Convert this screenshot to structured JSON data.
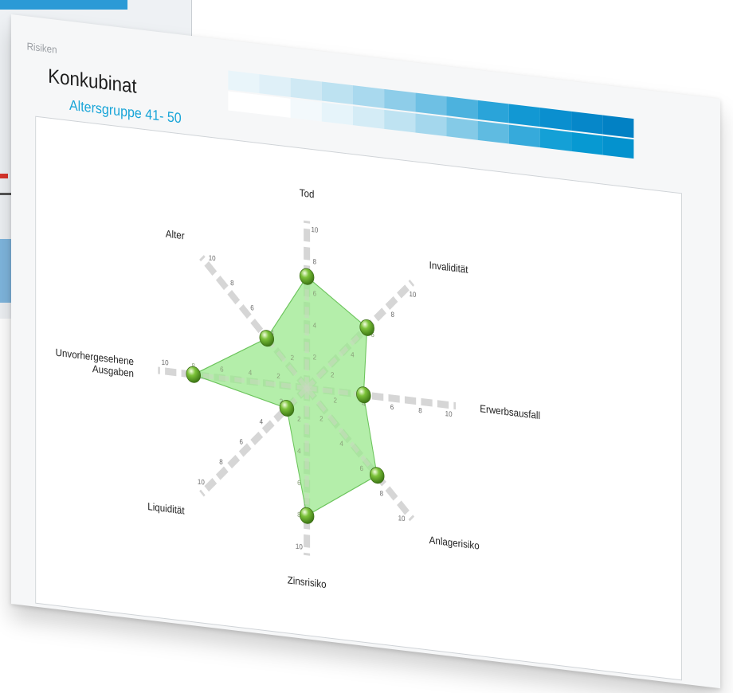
{
  "breadcrumb": "Risiken",
  "title": "Konkubinat",
  "subtitle": "Altersgruppe 41- 50",
  "colors": {
    "accent": "#19a5d8",
    "area_fill": "#9be88e",
    "area_stroke": "#6cc45c",
    "marker": "#7cc23a",
    "axis": "#d6d6d6"
  },
  "chart_data": {
    "type": "radar",
    "title": "",
    "axes": [
      "Tod",
      "Invalidität",
      "Erwerbsausfall",
      "Anlagerisiko",
      "Zinsrisiko",
      "Liquidität",
      "Unvorhergesehene Ausgaben",
      "Alter"
    ],
    "axis_label_lines": [
      [
        "Tod"
      ],
      [
        "Invalidität"
      ],
      [
        "Erwerbsausfall"
      ],
      [
        "Anlagerisiko"
      ],
      [
        "Zinsrisiko"
      ],
      [
        "Liquidität"
      ],
      [
        "Unvorhergesehene",
        "Ausgaben"
      ],
      [
        "Alter"
      ]
    ],
    "range": [
      0,
      10
    ],
    "ticks": [
      2,
      4,
      6,
      8,
      10
    ],
    "series": [
      {
        "values": [
          7,
          6,
          4,
          7,
          8,
          2,
          8,
          4
        ]
      }
    ],
    "grid": false,
    "legend": "none"
  }
}
